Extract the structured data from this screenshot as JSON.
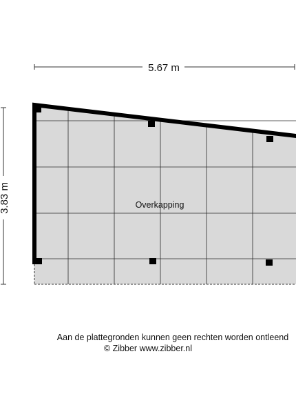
{
  "plan": {
    "width_label": "5.67 m",
    "height_label": "3.83 m",
    "room_label": "Overkapping"
  },
  "footer": {
    "disclaimer": "Aan de plattegronden kunnen geen rechten worden ontleend",
    "copyright": "© Zibber www.zibber.nl"
  },
  "colors": {
    "floor": "#d9d9d9",
    "wall": "#000000",
    "grid": "#2a2a2a"
  }
}
